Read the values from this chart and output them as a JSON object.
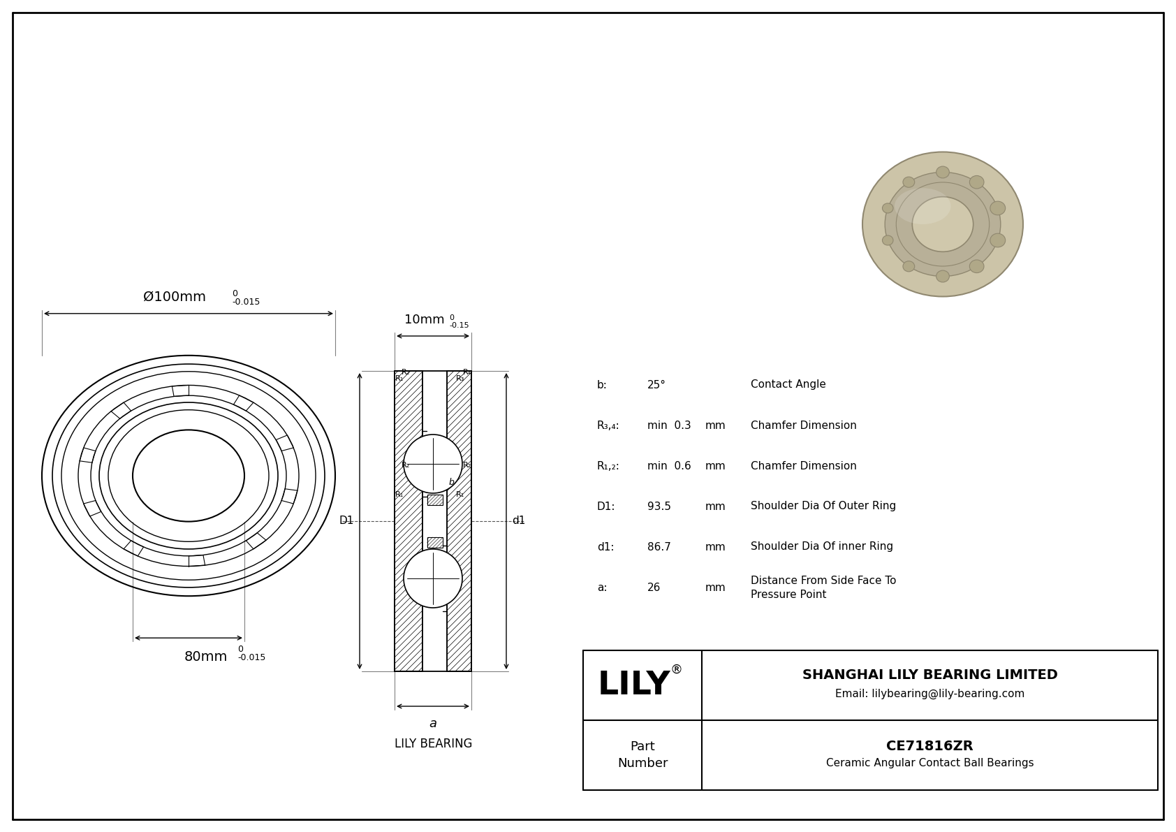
{
  "bg_color": "#ffffff",
  "line_color": "#000000",
  "outer_diameter_label": "Ø100mm",
  "outer_tol_top": "0",
  "outer_tol_bot": "-0.015",
  "inner_diameter_label": "80mm",
  "inner_tol_top": "0",
  "inner_tol_bot": "-0.015",
  "width_label": "10mm",
  "width_tol_top": "0",
  "width_tol_bot": "-0.15",
  "specs": [
    {
      "symbol": "b:",
      "value": "25°",
      "unit": "",
      "desc": "Contact Angle"
    },
    {
      "symbol": "R₃,₄:",
      "value": "min  0.3",
      "unit": "mm",
      "desc": "Chamfer Dimension"
    },
    {
      "symbol": "R₁,₂:",
      "value": "min  0.6",
      "unit": "mm",
      "desc": "Chamfer Dimension"
    },
    {
      "symbol": "D1:",
      "value": "93.5",
      "unit": "mm",
      "desc": "Shoulder Dia Of Outer Ring"
    },
    {
      "symbol": "d1:",
      "value": "86.7",
      "unit": "mm",
      "desc": "Shoulder Dia Of inner Ring"
    },
    {
      "symbol": "a:",
      "value": "26",
      "unit": "mm",
      "desc": "Distance From Side Face To\nPressure Point"
    }
  ],
  "company": "SHANGHAI LILY BEARING LIMITED",
  "email": "Email: lilybearing@lily-bearing.com",
  "part_number": "CE71816ZR",
  "part_type": "Ceramic Angular Contact Ball Bearings",
  "brand": "LILY",
  "watermark": "LILY BEARING",
  "photo_color_outer": "#ccc4a8",
  "photo_color_inner": "#b8b098",
  "photo_color_ball": "#b0a888",
  "photo_color_dark": "#908870"
}
